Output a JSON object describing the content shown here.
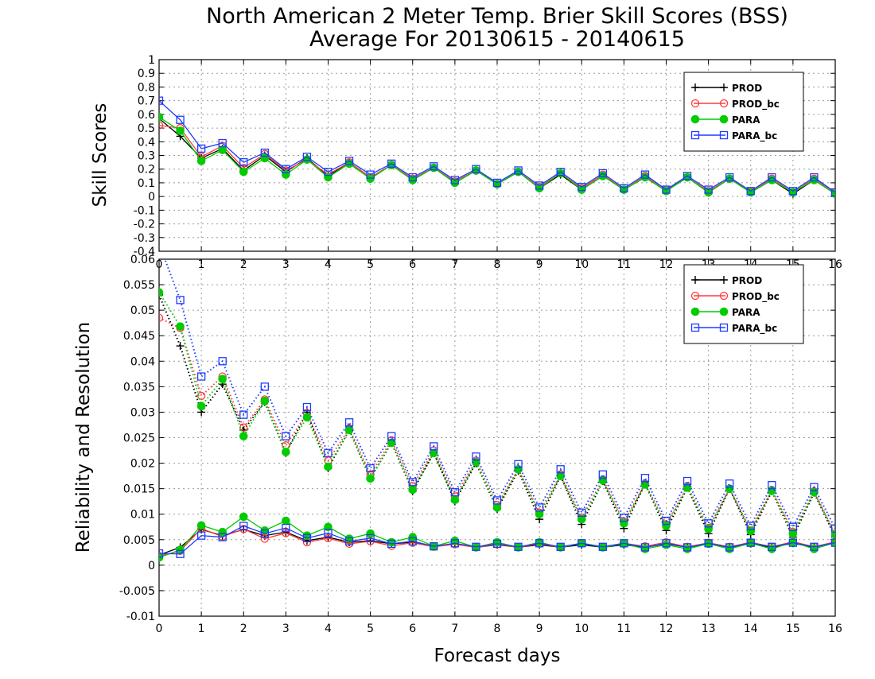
{
  "title_line1": "North American 2 Meter Temp. Brier Skill Scores (BSS)",
  "title_line2": "Average For 20130615 - 20140615",
  "xlabel": "Forecast days",
  "colors": {
    "PROD": "#000000",
    "PROD_bc": "#ff3b3b",
    "PARA": "#00cc00",
    "PARA_bc": "#1e3cff"
  },
  "chart_data": [
    {
      "type": "line",
      "ylabel": "Skill Scores",
      "xlim": [
        0,
        16
      ],
      "ylim": [
        -0.4,
        1
      ],
      "grid": true,
      "legend_position": "top-right",
      "x_ticks": [
        "0",
        "1",
        "2",
        "3",
        "4",
        "5",
        "6",
        "7",
        "8",
        "9",
        "10",
        "11",
        "12",
        "13",
        "14",
        "15",
        "16"
      ],
      "y_ticks": [
        "-0.4",
        "-0.3",
        "-0.2",
        "-0.1",
        "0",
        "0.1",
        "0.2",
        "0.3",
        "0.4",
        "0.5",
        "0.6",
        "0.7",
        "0.8",
        "0.9",
        "1"
      ],
      "x": [
        0,
        0.5,
        1,
        1.5,
        2,
        2.5,
        3,
        3.5,
        4,
        4.5,
        5,
        5.5,
        6,
        6.5,
        7,
        7.5,
        8,
        8.5,
        9,
        9.5,
        10,
        10.5,
        11,
        11.5,
        12,
        12.5,
        13,
        13.5,
        14,
        14.5,
        15,
        15.5,
        16
      ],
      "series": [
        {
          "name": "PROD",
          "marker": "plus",
          "style": "solid",
          "values": [
            0.57,
            0.44,
            0.28,
            0.35,
            0.19,
            0.3,
            0.18,
            0.28,
            0.15,
            0.25,
            0.14,
            0.23,
            0.12,
            0.21,
            0.1,
            0.19,
            0.09,
            0.18,
            0.06,
            0.16,
            0.05,
            0.15,
            0.05,
            0.14,
            0.04,
            0.14,
            0.03,
            0.13,
            0.03,
            0.12,
            0.02,
            0.12,
            0.02
          ]
        },
        {
          "name": "PROD_bc",
          "marker": "circle-open",
          "style": "solid",
          "values": [
            0.52,
            0.5,
            0.29,
            0.37,
            0.21,
            0.31,
            0.19,
            0.27,
            0.16,
            0.25,
            0.14,
            0.23,
            0.13,
            0.21,
            0.11,
            0.19,
            0.09,
            0.18,
            0.07,
            0.17,
            0.06,
            0.16,
            0.05,
            0.15,
            0.05,
            0.14,
            0.04,
            0.13,
            0.04,
            0.13,
            0.03,
            0.13,
            0.03
          ]
        },
        {
          "name": "PARA",
          "marker": "circle-filled",
          "style": "solid",
          "values": [
            0.58,
            0.48,
            0.26,
            0.34,
            0.18,
            0.28,
            0.16,
            0.27,
            0.14,
            0.24,
            0.13,
            0.23,
            0.12,
            0.21,
            0.1,
            0.19,
            0.09,
            0.18,
            0.06,
            0.17,
            0.05,
            0.15,
            0.05,
            0.14,
            0.04,
            0.14,
            0.03,
            0.13,
            0.03,
            0.12,
            0.03,
            0.12,
            0.02
          ]
        },
        {
          "name": "PARA_bc",
          "marker": "square-open",
          "style": "solid",
          "values": [
            0.7,
            0.56,
            0.35,
            0.39,
            0.25,
            0.32,
            0.2,
            0.29,
            0.18,
            0.26,
            0.16,
            0.24,
            0.14,
            0.22,
            0.12,
            0.2,
            0.1,
            0.19,
            0.08,
            0.18,
            0.07,
            0.17,
            0.06,
            0.16,
            0.05,
            0.15,
            0.05,
            0.14,
            0.04,
            0.14,
            0.04,
            0.14,
            0.03
          ]
        }
      ]
    },
    {
      "type": "line",
      "ylabel": "Reliability and Resolution",
      "xlim": [
        0,
        16
      ],
      "ylim": [
        -0.01,
        0.06
      ],
      "grid": true,
      "legend_position": "top-right",
      "x_ticks": [
        "0",
        "1",
        "2",
        "3",
        "4",
        "5",
        "6",
        "7",
        "8",
        "9",
        "10",
        "11",
        "12",
        "13",
        "14",
        "15",
        "16"
      ],
      "y_ticks": [
        "-0.01",
        "-0.005",
        "0",
        "0.005",
        "0.01",
        "0.015",
        "0.02",
        "0.025",
        "0.03",
        "0.035",
        "0.04",
        "0.045",
        "0.05",
        "0.055",
        "0.06"
      ],
      "x": [
        0,
        0.5,
        1,
        1.5,
        2,
        2.5,
        3,
        3.5,
        4,
        4.5,
        5,
        5.5,
        6,
        6.5,
        7,
        7.5,
        8,
        8.5,
        9,
        9.5,
        10,
        10.5,
        11,
        11.5,
        12,
        12.5,
        13,
        13.5,
        14,
        14.5,
        15,
        15.5,
        16
      ],
      "series": [
        {
          "name": "PROD",
          "role": "resolution",
          "marker": "plus",
          "style": "dotted",
          "values": [
            0.053,
            0.043,
            0.03,
            0.0355,
            0.0265,
            0.032,
            0.022,
            0.03,
            0.019,
            0.0265,
            0.017,
            0.024,
            0.0145,
            0.022,
            0.0125,
            0.02,
            0.011,
            0.0185,
            0.009,
            0.0175,
            0.008,
            0.0165,
            0.0072,
            0.016,
            0.0068,
            0.0152,
            0.0062,
            0.015,
            0.006,
            0.0145,
            0.0055,
            0.0142,
            0.0055
          ]
        },
        {
          "name": "PROD_bc",
          "role": "resolution",
          "marker": "circle-open",
          "style": "dotted",
          "values": [
            0.0485,
            0.0465,
            0.0332,
            0.037,
            0.027,
            0.0325,
            0.0235,
            0.0298,
            0.0205,
            0.0268,
            0.0178,
            0.0245,
            0.0155,
            0.0225,
            0.0135,
            0.0205,
            0.0118,
            0.0188,
            0.0103,
            0.0178,
            0.0093,
            0.0168,
            0.0085,
            0.016,
            0.008,
            0.0155,
            0.0073,
            0.015,
            0.0068,
            0.0147,
            0.0065,
            0.0145,
            0.006
          ]
        },
        {
          "name": "PARA",
          "role": "resolution",
          "marker": "circle-filled",
          "style": "dotted",
          "values": [
            0.0535,
            0.0468,
            0.0312,
            0.0365,
            0.0253,
            0.0322,
            0.0222,
            0.029,
            0.0193,
            0.0265,
            0.017,
            0.024,
            0.0148,
            0.022,
            0.0128,
            0.0202,
            0.0113,
            0.0188,
            0.01,
            0.0175,
            0.009,
            0.0166,
            0.0082,
            0.0158,
            0.0077,
            0.0152,
            0.0071,
            0.015,
            0.0067,
            0.0146,
            0.0062,
            0.0143,
            0.006
          ]
        },
        {
          "name": "PARA_bc",
          "role": "resolution",
          "marker": "square-open",
          "style": "dotted",
          "values": [
            0.063,
            0.052,
            0.037,
            0.04,
            0.0295,
            0.035,
            0.0253,
            0.031,
            0.022,
            0.028,
            0.019,
            0.0253,
            0.0163,
            0.0233,
            0.0143,
            0.0213,
            0.0127,
            0.0198,
            0.0113,
            0.0188,
            0.0103,
            0.0178,
            0.0093,
            0.0171,
            0.0087,
            0.0165,
            0.0082,
            0.016,
            0.0077,
            0.0157,
            0.0075,
            0.0153,
            0.0072
          ]
        },
        {
          "name": "PROD",
          "role": "reliability",
          "marker": "plus",
          "style": "solid",
          "values": [
            0.002,
            0.0035,
            0.007,
            0.0058,
            0.007,
            0.0058,
            0.0065,
            0.0048,
            0.0055,
            0.0045,
            0.0048,
            0.0042,
            0.0045,
            0.0037,
            0.0042,
            0.0035,
            0.004,
            0.0035,
            0.004,
            0.0035,
            0.004,
            0.0035,
            0.004,
            0.0035,
            0.0042,
            0.0035,
            0.0042,
            0.0035,
            0.0042,
            0.0035,
            0.0043,
            0.0035,
            0.0045
          ]
        },
        {
          "name": "PROD_bc",
          "role": "reliability",
          "marker": "circle-open",
          "style": "solid",
          "values": [
            0.0018,
            0.0028,
            0.0072,
            0.0056,
            0.0071,
            0.0052,
            0.0063,
            0.0045,
            0.0053,
            0.0042,
            0.0047,
            0.0038,
            0.0044,
            0.0036,
            0.0041,
            0.0035,
            0.0041,
            0.0035,
            0.0042,
            0.0035,
            0.0043,
            0.0036,
            0.0043,
            0.0037,
            0.0045,
            0.0036,
            0.0044,
            0.0036,
            0.0045,
            0.0036,
            0.0046,
            0.0036,
            0.0046
          ]
        },
        {
          "name": "PARA",
          "role": "reliability",
          "marker": "circle-filled",
          "style": "solid",
          "values": [
            0.0015,
            0.003,
            0.0078,
            0.0065,
            0.0095,
            0.0068,
            0.0087,
            0.0058,
            0.0075,
            0.0052,
            0.0062,
            0.0045,
            0.0055,
            0.0037,
            0.0048,
            0.0035,
            0.0045,
            0.0035,
            0.0045,
            0.0035,
            0.0043,
            0.0035,
            0.0042,
            0.0032,
            0.004,
            0.0032,
            0.0042,
            0.0032,
            0.0043,
            0.0032,
            0.0045,
            0.0032,
            0.0044
          ]
        },
        {
          "name": "PARA_bc",
          "role": "reliability",
          "marker": "square-open",
          "style": "solid",
          "values": [
            0.0023,
            0.0022,
            0.0058,
            0.0055,
            0.0077,
            0.0062,
            0.0073,
            0.0053,
            0.0063,
            0.0047,
            0.0053,
            0.0042,
            0.0047,
            0.0037,
            0.0043,
            0.0036,
            0.0042,
            0.0036,
            0.0043,
            0.0036,
            0.0043,
            0.0036,
            0.0043,
            0.0035,
            0.0043,
            0.0035,
            0.0043,
            0.0035,
            0.0044,
            0.0036,
            0.0044,
            0.0036,
            0.0044
          ]
        }
      ]
    }
  ]
}
